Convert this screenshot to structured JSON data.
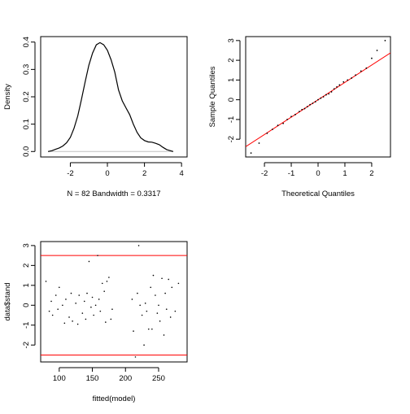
{
  "chart_data": [
    {
      "type": "line",
      "panel": "density",
      "xlabel": "N = 82   Bandwidth = 0.3317",
      "ylabel": "Density",
      "xlim": [
        -3.6,
        4.3
      ],
      "ylim": [
        -0.02,
        0.42
      ],
      "xticks": [
        -2,
        0,
        2,
        4
      ],
      "yticks": [
        0.0,
        0.1,
        0.2,
        0.3,
        0.4
      ],
      "baseline": 0,
      "x": [
        -3.2,
        -3.0,
        -2.8,
        -2.6,
        -2.4,
        -2.2,
        -2.0,
        -1.8,
        -1.6,
        -1.4,
        -1.2,
        -1.0,
        -0.8,
        -0.6,
        -0.4,
        -0.2,
        0.0,
        0.2,
        0.4,
        0.6,
        0.8,
        1.0,
        1.2,
        1.4,
        1.6,
        1.8,
        2.0,
        2.2,
        2.4,
        2.6,
        2.8,
        3.0,
        3.2,
        3.4,
        3.55
      ],
      "y": [
        0.0,
        0.003,
        0.008,
        0.013,
        0.02,
        0.032,
        0.052,
        0.085,
        0.13,
        0.19,
        0.255,
        0.315,
        0.36,
        0.39,
        0.398,
        0.39,
        0.37,
        0.335,
        0.29,
        0.225,
        0.185,
        0.16,
        0.135,
        0.1,
        0.07,
        0.05,
        0.04,
        0.035,
        0.034,
        0.03,
        0.025,
        0.015,
        0.007,
        0.003,
        0.0
      ]
    },
    {
      "type": "scatter",
      "panel": "qq",
      "xlabel": "Theoretical Quantiles",
      "ylabel": "Sample Quantiles",
      "xlim": [
        -2.7,
        2.7
      ],
      "ylim": [
        -2.9,
        3.2
      ],
      "xticks": [
        -2,
        -1,
        0,
        1,
        2
      ],
      "yticks": [
        -2,
        -1,
        0,
        1,
        2,
        3
      ],
      "reference_line": {
        "intercept": 0.0,
        "slope": 0.88,
        "color": "#ff0000"
      },
      "x": [
        -2.5,
        -2.2,
        -1.9,
        -1.7,
        -1.5,
        -1.3,
        -1.15,
        -1.0,
        -0.85,
        -0.7,
        -0.6,
        -0.5,
        -0.4,
        -0.3,
        -0.2,
        -0.1,
        0.0,
        0.1,
        0.2,
        0.3,
        0.4,
        0.5,
        0.6,
        0.7,
        0.8,
        0.95,
        1.1,
        1.25,
        1.4,
        1.6,
        1.8,
        2.0,
        2.2,
        2.5
      ],
      "y": [
        -2.7,
        -2.2,
        -1.7,
        -1.5,
        -1.3,
        -1.2,
        -1.0,
        -0.85,
        -0.75,
        -0.6,
        -0.5,
        -0.45,
        -0.35,
        -0.25,
        -0.18,
        -0.1,
        0.0,
        0.08,
        0.15,
        0.25,
        0.3,
        0.4,
        0.55,
        0.65,
        0.75,
        0.9,
        1.0,
        1.1,
        1.25,
        1.45,
        1.6,
        2.1,
        2.5,
        3.0
      ]
    },
    {
      "type": "scatter",
      "panel": "residuals",
      "xlabel": "fitted(model)",
      "ylabel": "data$stand",
      "xlim": [
        72,
        293
      ],
      "ylim": [
        -2.85,
        3.2
      ],
      "xticks": [
        100,
        150,
        200,
        250
      ],
      "yticks": [
        -2,
        -1,
        0,
        1,
        2,
        3
      ],
      "hlines": {
        "values": [
          2.5,
          -2.5
        ],
        "color": "#ff0000"
      },
      "x": [
        80,
        85,
        88,
        90,
        95,
        98,
        100,
        105,
        108,
        110,
        115,
        118,
        120,
        125,
        128,
        130,
        135,
        138,
        140,
        142,
        145,
        148,
        150,
        152,
        155,
        158,
        160,
        162,
        165,
        168,
        170,
        172,
        175,
        178,
        180,
        210,
        212,
        215,
        218,
        220,
        222,
        225,
        228,
        230,
        232,
        235,
        238,
        240,
        242,
        245,
        248,
        250,
        252,
        255,
        258,
        260,
        262,
        265,
        268,
        270,
        275,
        280
      ],
      "y": [
        1.2,
        -0.3,
        0.2,
        -0.5,
        0.5,
        -0.2,
        0.9,
        0.0,
        -0.9,
        0.3,
        -0.6,
        0.6,
        -0.8,
        0.1,
        -0.95,
        0.5,
        -0.4,
        0.2,
        -0.7,
        0.6,
        2.2,
        -0.1,
        0.4,
        -0.5,
        0.0,
        2.5,
        0.3,
        -0.3,
        1.1,
        0.7,
        -0.85,
        1.2,
        1.4,
        -0.7,
        -0.2,
        0.3,
        -1.3,
        -2.6,
        0.6,
        3.0,
        0.0,
        -0.5,
        -2.0,
        0.1,
        -0.3,
        -1.2,
        0.9,
        -1.2,
        1.5,
        0.5,
        -0.4,
        0.0,
        -0.8,
        1.35,
        -1.5,
        0.6,
        -0.2,
        1.3,
        -0.6,
        0.9,
        -0.3,
        1.1
      ]
    }
  ]
}
